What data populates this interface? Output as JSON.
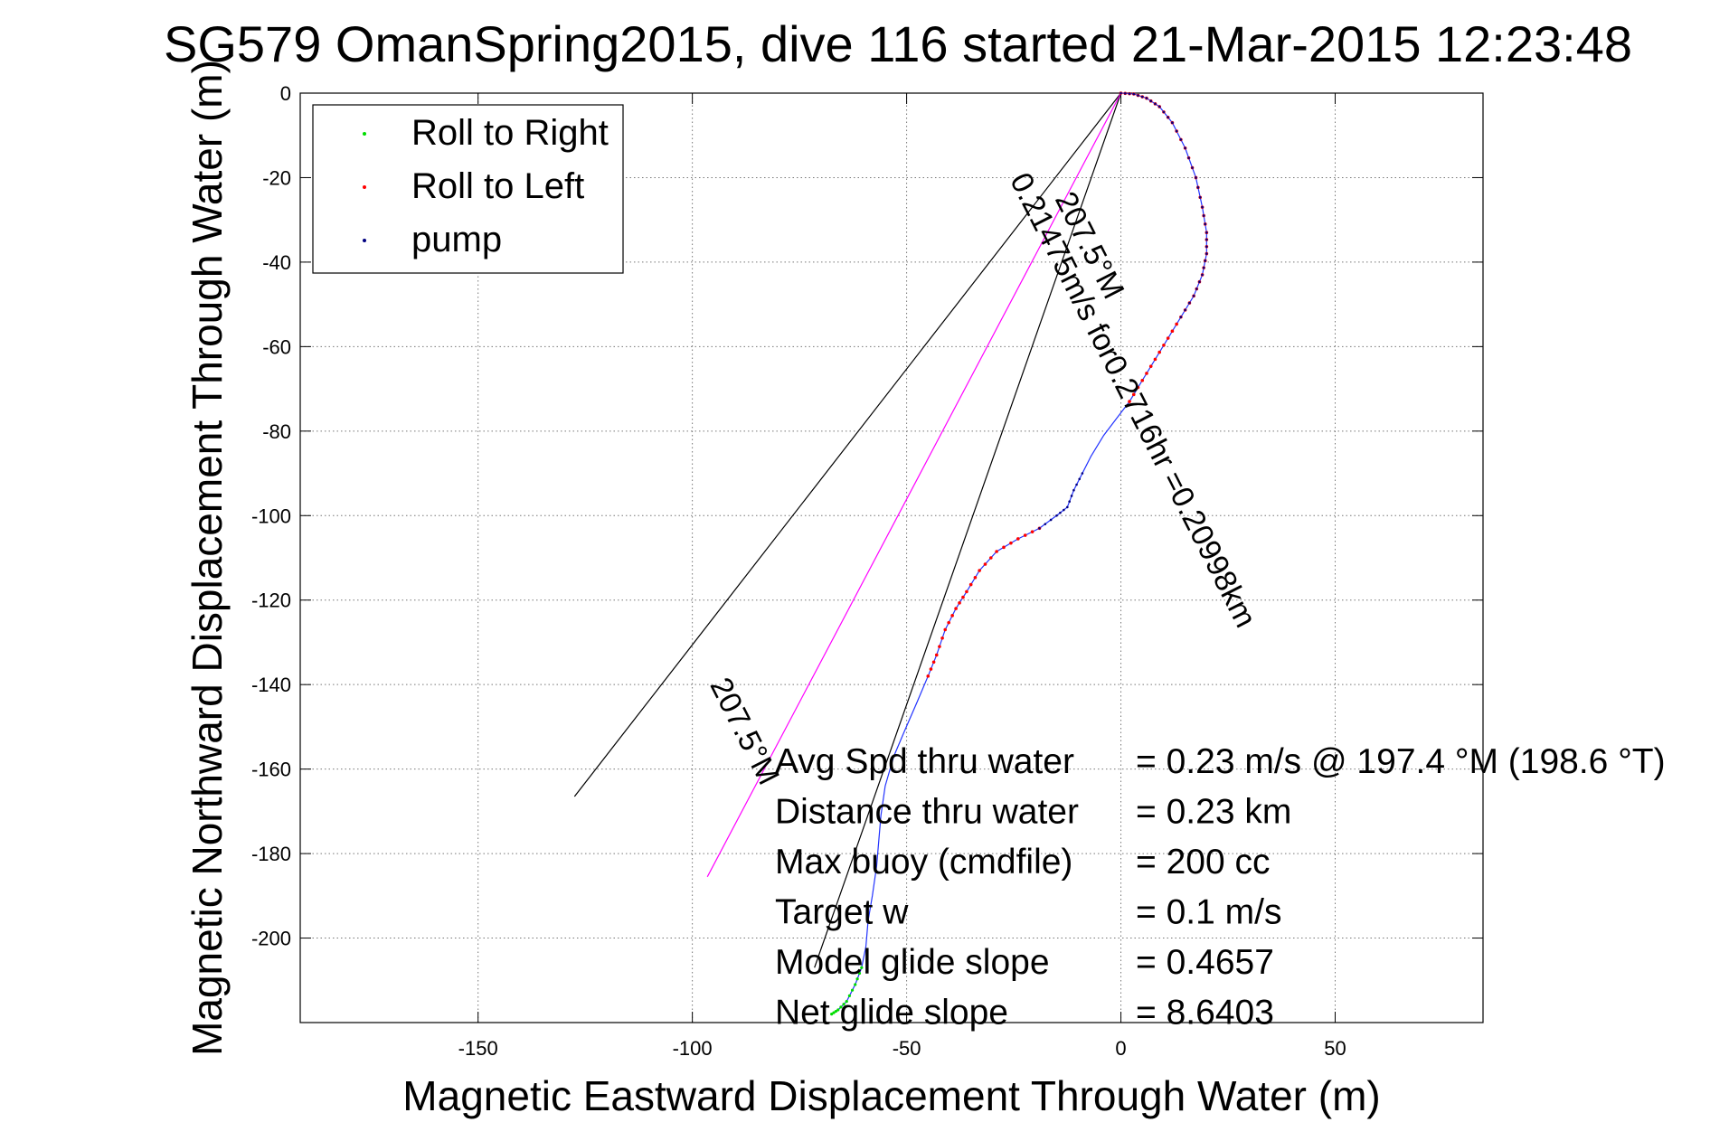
{
  "chart_data": {
    "type": "line",
    "title": "SG579 OmanSpring2015, dive 116 started 21-Mar-2015 12:23:48",
    "xlabel": "Magnetic Eastward Displacement Through Water (m)",
    "ylabel": "Magnetic Northward Displacement Through Water (m)",
    "xlim": [
      -191.5,
      84.5
    ],
    "ylim": [
      -220,
      0
    ],
    "xticks": [
      -150,
      -100,
      -50,
      0,
      50
    ],
    "xtick_labels": [
      "-150",
      "-100",
      "-50",
      "0",
      "50"
    ],
    "yticks": [
      0,
      -20,
      -40,
      -60,
      -80,
      -100,
      -120,
      -140,
      -160,
      -180,
      -200
    ],
    "ytick_labels": [
      "0",
      "-20",
      "-40",
      "-60",
      "-80",
      "-100",
      "-120",
      "-140",
      "-160",
      "-180",
      "-200"
    ],
    "grid": true,
    "legend_position": "top-left",
    "legend": [
      {
        "name": "Roll to Right",
        "color": "#00dd00"
      },
      {
        "name": "Roll to Left",
        "color": "#ff0000"
      },
      {
        "name": "pump",
        "color": "#000080"
      }
    ],
    "track": {
      "color": "#2233ff",
      "points": [
        [
          0,
          0
        ],
        [
          3,
          -0.2
        ],
        [
          6,
          -1.2
        ],
        [
          9,
          -3.2
        ],
        [
          12,
          -7
        ],
        [
          15,
          -13
        ],
        [
          17.5,
          -20
        ],
        [
          19,
          -27
        ],
        [
          20,
          -33
        ],
        [
          20,
          -38
        ],
        [
          19,
          -43
        ],
        [
          17,
          -48
        ],
        [
          14,
          -53
        ],
        [
          11,
          -58
        ],
        [
          8,
          -63
        ],
        [
          5,
          -68
        ],
        [
          2,
          -73
        ],
        [
          -1,
          -77
        ],
        [
          -4,
          -81
        ],
        [
          -7,
          -86
        ],
        [
          -9,
          -90
        ],
        [
          -11,
          -94
        ],
        [
          -12.5,
          -98
        ],
        [
          -15,
          -100
        ],
        [
          -19,
          -103
        ],
        [
          -24,
          -105.5
        ],
        [
          -29,
          -108.5
        ],
        [
          -33,
          -113
        ],
        [
          -36,
          -118
        ],
        [
          -38.5,
          -122
        ],
        [
          -41,
          -127
        ],
        [
          -43,
          -133
        ],
        [
          -45,
          -138
        ],
        [
          -47.5,
          -144
        ],
        [
          -50.5,
          -151
        ],
        [
          -53,
          -157
        ],
        [
          -55,
          -164
        ],
        [
          -56,
          -171
        ],
        [
          -56.5,
          -177
        ],
        [
          -57,
          -183
        ],
        [
          -58,
          -190
        ],
        [
          -59,
          -196
        ],
        [
          -59.5,
          -202
        ],
        [
          -60.5,
          -207
        ],
        [
          -62,
          -211
        ],
        [
          -64,
          -215
        ],
        [
          -66,
          -217
        ],
        [
          -67.5,
          -218
        ]
      ]
    },
    "pump_segments": [
      {
        "from": 0,
        "to": 12
      },
      {
        "from": 20,
        "to": 24
      }
    ],
    "roll_left_segments": [
      {
        "from": 0,
        "to": 16
      },
      {
        "from": 24,
        "to": 32
      }
    ],
    "roll_right_segments": [
      {
        "from": 43,
        "to": 47
      }
    ],
    "reference_lines": [
      {
        "from": [
          0,
          0
        ],
        "to": [
          -127.5,
          -166.5
        ],
        "color": "#000000"
      },
      {
        "from": [
          0,
          0
        ],
        "to": [
          -71.5,
          -207
        ],
        "color": "#000000"
      },
      {
        "from": [
          0,
          0
        ],
        "to": [
          -96.5,
          -185.5
        ],
        "color": "#ff00ff"
      }
    ],
    "annotations": [
      {
        "text": "207.5°M",
        "at": [
          -15.5,
          -25
        ],
        "angle": 63
      },
      {
        "text": "0.21475m/s for0.2716hr =0.20998km",
        "at": [
          -26,
          -20.5
        ],
        "angle": 63
      },
      {
        "text": "207.5°M",
        "at": [
          -96,
          -140
        ],
        "angle": 63
      }
    ],
    "stats": [
      {
        "label": "Avg Spd thru water",
        "value": "=  0.23 m/s @ 197.4 °M (198.6 °T)"
      },
      {
        "label": "Distance thru water",
        "value": "=  0.23 km"
      },
      {
        "label": "Max buoy (cmdfile)",
        "value": "= 200 cc"
      },
      {
        "label": "Target w",
        "value": "= 0.1 m/s"
      },
      {
        "label": "Model glide slope",
        "value": "= 0.4657"
      },
      {
        "label": "Net glide slope",
        "value": "= 8.6403"
      }
    ]
  }
}
